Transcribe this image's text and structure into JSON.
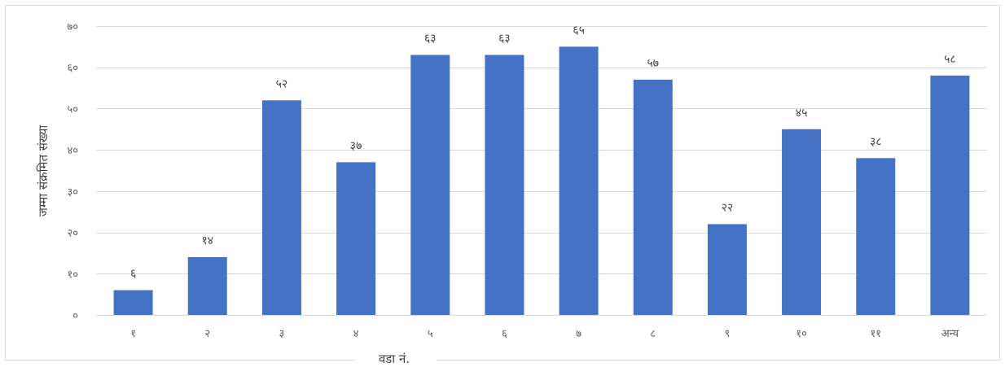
{
  "chart_data": {
    "type": "bar",
    "xlabel": "वडा नं.",
    "ylabel": "जम्मा संक्रमित संख्या",
    "ylim": [
      0,
      70
    ],
    "yticks": [
      0,
      10,
      20,
      30,
      40,
      50,
      60,
      70
    ],
    "ytick_labels": [
      "०",
      "१०",
      "२०",
      "३०",
      "४०",
      "५०",
      "६०",
      "७०"
    ],
    "categories": [
      "१",
      "२",
      "३",
      "४",
      "५",
      "६",
      "७",
      "८",
      "९",
      "१०",
      "११",
      "अन्य"
    ],
    "values": [
      6,
      14,
      52,
      37,
      63,
      63,
      65,
      57,
      22,
      45,
      38,
      58
    ],
    "data_labels": [
      "६",
      "१४",
      "५२",
      "३७",
      "६३",
      "६३",
      "६५",
      "५७",
      "२२",
      "४५",
      "३८",
      "५८"
    ],
    "grid": true,
    "legend": "none",
    "bar_color": "#4472C4",
    "grid_color": "#d9d9d9"
  }
}
